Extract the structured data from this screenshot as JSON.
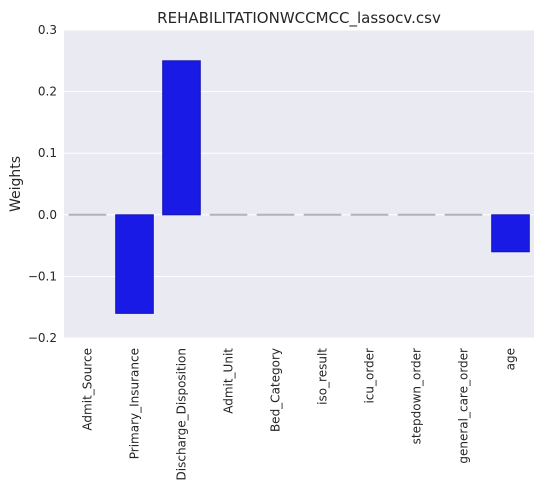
{
  "chart_data": {
    "type": "bar",
    "title": "REHABILITATIONWCCMCC_lassocv.csv",
    "xlabel": "",
    "ylabel": "Weights",
    "ylim": [
      -0.2,
      0.3
    ],
    "yticks": [
      "0.3",
      "0.2",
      "0.1",
      "0.0",
      "−0.1",
      "−0.2"
    ],
    "ytick_values": [
      0.3,
      0.2,
      0.1,
      0.0,
      -0.1,
      -0.2
    ],
    "grid": true,
    "categories": [
      "Admit_Source",
      "Primary_Insurance",
      "Discharge_Disposition",
      "Admit_Unit",
      "Bed_Category",
      "iso_result",
      "icu_order",
      "stepdown_order",
      "general_care_order",
      "age"
    ],
    "values": [
      0.0,
      -0.16,
      0.25,
      0.0,
      0.0,
      0.0,
      0.0,
      0.0,
      0.0,
      -0.06
    ],
    "colors": {
      "bar": "#1a1ae6",
      "bar_edge": "#1414b4",
      "background": "#eaeaf2",
      "grid": "#ffffff",
      "zero_bar": "#b3b3b3"
    }
  }
}
